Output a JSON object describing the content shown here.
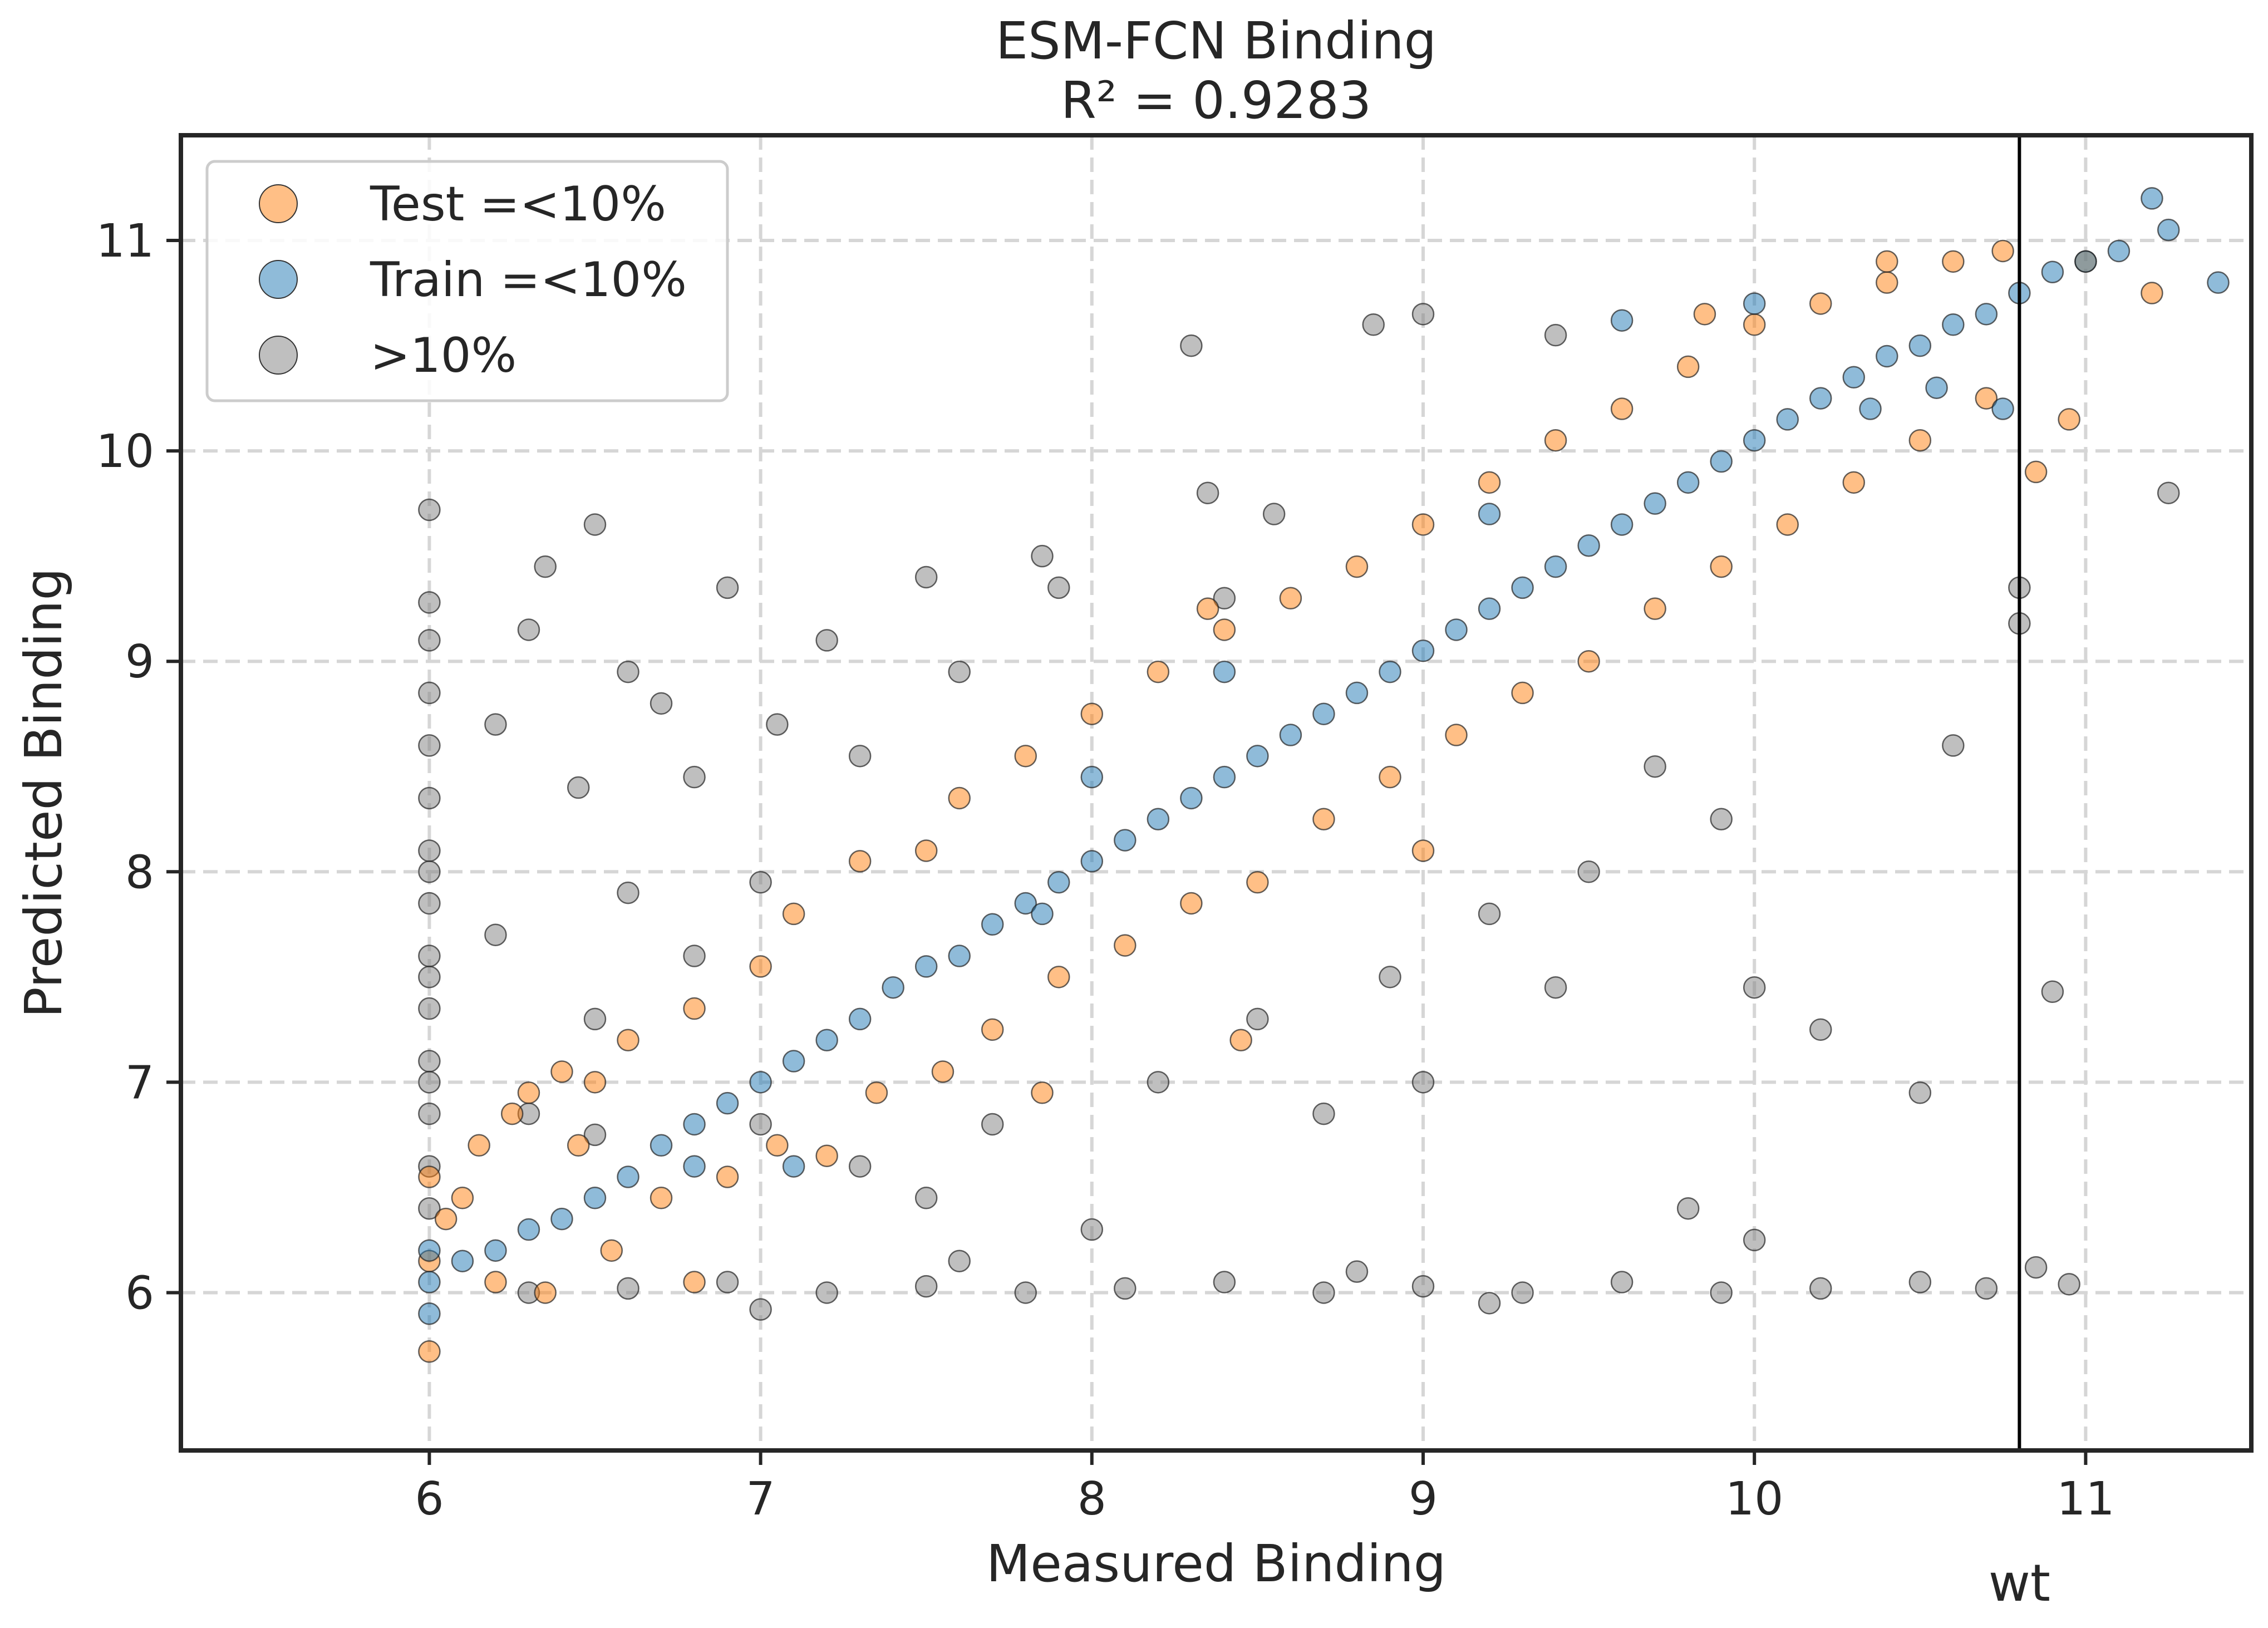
{
  "chart_data": {
    "type": "scatter",
    "title": "ESM-FCN Binding",
    "subtitle": "R² = 0.9283",
    "xlabel": "Measured Binding",
    "ylabel": "Predicted Binding",
    "xlim": [
      5.25,
      11.5
    ],
    "ylim": [
      5.25,
      11.5
    ],
    "xticks": [
      6,
      7,
      8,
      9,
      10,
      11
    ],
    "yticks": [
      6,
      7,
      8,
      9,
      10,
      11
    ],
    "grid": true,
    "legend_position": "top-left",
    "reference_line": {
      "x": 10.8,
      "label": "wt",
      "color": "#000000"
    },
    "series": [
      {
        "name": "Test =<10%",
        "color": "#ff7f0e",
        "points": [
          [
            6.0,
            6.15
          ],
          [
            6.0,
            6.55
          ],
          [
            6.0,
            5.72
          ],
          [
            6.05,
            6.35
          ],
          [
            6.1,
            6.45
          ],
          [
            6.15,
            6.7
          ],
          [
            6.2,
            6.05
          ],
          [
            6.25,
            6.85
          ],
          [
            6.3,
            6.95
          ],
          [
            6.35,
            6.0
          ],
          [
            6.4,
            7.05
          ],
          [
            6.45,
            6.7
          ],
          [
            6.5,
            7.0
          ],
          [
            6.55,
            6.2
          ],
          [
            6.6,
            7.2
          ],
          [
            6.7,
            6.45
          ],
          [
            6.8,
            7.35
          ],
          [
            6.9,
            6.55
          ],
          [
            7.0,
            7.55
          ],
          [
            7.05,
            6.7
          ],
          [
            7.1,
            7.8
          ],
          [
            7.2,
            6.65
          ],
          [
            7.3,
            8.05
          ],
          [
            7.35,
            6.95
          ],
          [
            7.5,
            8.1
          ],
          [
            7.55,
            7.05
          ],
          [
            7.6,
            8.35
          ],
          [
            7.7,
            7.25
          ],
          [
            7.8,
            8.55
          ],
          [
            7.9,
            7.5
          ],
          [
            8.0,
            8.75
          ],
          [
            8.1,
            7.65
          ],
          [
            8.2,
            8.95
          ],
          [
            8.3,
            7.85
          ],
          [
            8.4,
            9.15
          ],
          [
            8.5,
            7.95
          ],
          [
            8.6,
            9.3
          ],
          [
            8.7,
            8.25
          ],
          [
            8.8,
            9.45
          ],
          [
            8.9,
            8.45
          ],
          [
            9.0,
            9.65
          ],
          [
            9.1,
            8.65
          ],
          [
            9.2,
            9.85
          ],
          [
            9.3,
            8.85
          ],
          [
            9.4,
            10.05
          ],
          [
            9.5,
            9.0
          ],
          [
            9.6,
            10.2
          ],
          [
            9.7,
            9.25
          ],
          [
            9.8,
            10.4
          ],
          [
            9.9,
            9.45
          ],
          [
            10.0,
            10.6
          ],
          [
            10.1,
            9.65
          ],
          [
            10.2,
            10.7
          ],
          [
            10.3,
            9.85
          ],
          [
            10.4,
            10.8
          ],
          [
            10.5,
            10.05
          ],
          [
            10.6,
            10.9
          ],
          [
            10.7,
            10.25
          ],
          [
            10.75,
            10.95
          ],
          [
            10.85,
            9.9
          ],
          [
            10.95,
            10.15
          ],
          [
            11.0,
            10.9
          ],
          [
            11.2,
            10.75
          ],
          [
            9.85,
            10.65
          ],
          [
            10.4,
            10.9
          ],
          [
            9.0,
            8.1
          ],
          [
            8.45,
            7.2
          ],
          [
            7.85,
            6.95
          ],
          [
            6.8,
            6.05
          ],
          [
            8.35,
            9.25
          ]
        ]
      },
      {
        "name": "Train =<10%",
        "color": "#1f77b4",
        "points": [
          [
            6.0,
            5.9
          ],
          [
            6.0,
            6.05
          ],
          [
            6.0,
            6.2
          ],
          [
            6.1,
            6.15
          ],
          [
            6.2,
            6.2
          ],
          [
            6.3,
            6.3
          ],
          [
            6.4,
            6.35
          ],
          [
            6.5,
            6.45
          ],
          [
            6.6,
            6.55
          ],
          [
            6.7,
            6.7
          ],
          [
            6.8,
            6.8
          ],
          [
            6.9,
            6.9
          ],
          [
            7.0,
            7.0
          ],
          [
            7.1,
            7.1
          ],
          [
            7.2,
            7.2
          ],
          [
            7.3,
            7.3
          ],
          [
            7.4,
            7.45
          ],
          [
            7.5,
            7.55
          ],
          [
            7.6,
            7.6
          ],
          [
            7.7,
            7.75
          ],
          [
            7.8,
            7.85
          ],
          [
            7.9,
            7.95
          ],
          [
            8.0,
            8.05
          ],
          [
            8.1,
            8.15
          ],
          [
            8.2,
            8.25
          ],
          [
            8.3,
            8.35
          ],
          [
            8.4,
            8.45
          ],
          [
            8.5,
            8.55
          ],
          [
            8.6,
            8.65
          ],
          [
            8.7,
            8.75
          ],
          [
            8.8,
            8.85
          ],
          [
            8.9,
            8.95
          ],
          [
            9.0,
            9.05
          ],
          [
            9.1,
            9.15
          ],
          [
            9.2,
            9.25
          ],
          [
            9.3,
            9.35
          ],
          [
            9.4,
            9.45
          ],
          [
            9.5,
            9.55
          ],
          [
            9.6,
            9.65
          ],
          [
            9.7,
            9.75
          ],
          [
            9.8,
            9.85
          ],
          [
            9.9,
            9.95
          ],
          [
            10.0,
            10.05
          ],
          [
            10.1,
            10.15
          ],
          [
            10.2,
            10.25
          ],
          [
            10.3,
            10.35
          ],
          [
            10.4,
            10.45
          ],
          [
            10.5,
            10.5
          ],
          [
            10.6,
            10.6
          ],
          [
            10.7,
            10.65
          ],
          [
            10.8,
            10.75
          ],
          [
            10.9,
            10.85
          ],
          [
            11.0,
            10.9
          ],
          [
            11.1,
            10.95
          ],
          [
            11.2,
            11.2
          ],
          [
            11.25,
            11.05
          ],
          [
            11.4,
            10.8
          ],
          [
            9.6,
            10.62
          ],
          [
            10.0,
            10.7
          ],
          [
            8.4,
            8.95
          ],
          [
            7.85,
            7.8
          ],
          [
            7.1,
            6.6
          ],
          [
            6.8,
            6.6
          ],
          [
            10.35,
            10.2
          ],
          [
            10.55,
            10.3
          ],
          [
            10.75,
            10.2
          ],
          [
            9.2,
            9.7
          ],
          [
            8.0,
            8.45
          ]
        ]
      },
      {
        "name": ">10%",
        "color": "#808080",
        "points": [
          [
            6.0,
            9.72
          ],
          [
            6.0,
            9.28
          ],
          [
            6.0,
            9.1
          ],
          [
            6.0,
            8.85
          ],
          [
            6.0,
            8.6
          ],
          [
            6.0,
            8.35
          ],
          [
            6.0,
            8.1
          ],
          [
            6.0,
            7.85
          ],
          [
            6.0,
            7.6
          ],
          [
            6.0,
            7.35
          ],
          [
            6.0,
            7.1
          ],
          [
            6.0,
            6.85
          ],
          [
            6.0,
            6.6
          ],
          [
            6.0,
            6.4
          ],
          [
            6.0,
            8.0
          ],
          [
            6.0,
            7.5
          ],
          [
            6.0,
            7.0
          ],
          [
            6.35,
            9.45
          ],
          [
            6.5,
            9.65
          ],
          [
            6.3,
            9.15
          ],
          [
            6.6,
            8.95
          ],
          [
            6.2,
            8.7
          ],
          [
            6.45,
            8.4
          ],
          [
            6.7,
            8.8
          ],
          [
            6.9,
            9.35
          ],
          [
            7.05,
            8.7
          ],
          [
            6.8,
            8.45
          ],
          [
            7.2,
            9.1
          ],
          [
            7.3,
            8.55
          ],
          [
            7.5,
            9.4
          ],
          [
            7.6,
            8.95
          ],
          [
            7.85,
            9.5
          ],
          [
            7.9,
            9.35
          ],
          [
            8.3,
            10.5
          ],
          [
            8.35,
            9.8
          ],
          [
            8.55,
            9.7
          ],
          [
            8.4,
            9.3
          ],
          [
            8.85,
            10.6
          ],
          [
            9.0,
            10.65
          ],
          [
            9.4,
            10.55
          ],
          [
            6.2,
            7.7
          ],
          [
            6.5,
            7.3
          ],
          [
            6.6,
            7.9
          ],
          [
            6.8,
            7.6
          ],
          [
            7.0,
            7.95
          ],
          [
            6.3,
            6.85
          ],
          [
            6.5,
            6.75
          ],
          [
            7.0,
            6.8
          ],
          [
            7.3,
            6.6
          ],
          [
            7.5,
            6.45
          ],
          [
            7.7,
            6.8
          ],
          [
            8.0,
            6.3
          ],
          [
            8.2,
            7.0
          ],
          [
            8.5,
            7.3
          ],
          [
            8.7,
            6.85
          ],
          [
            8.9,
            7.5
          ],
          [
            9.0,
            7.0
          ],
          [
            9.2,
            7.8
          ],
          [
            9.4,
            7.45
          ],
          [
            9.5,
            8.0
          ],
          [
            9.7,
            8.5
          ],
          [
            9.9,
            8.25
          ],
          [
            10.0,
            7.45
          ],
          [
            10.2,
            7.25
          ],
          [
            10.5,
            6.95
          ],
          [
            10.6,
            8.6
          ],
          [
            10.8,
            9.35
          ],
          [
            10.8,
            9.18
          ],
          [
            10.9,
            7.43
          ],
          [
            11.25,
            9.8
          ],
          [
            9.8,
            6.4
          ],
          [
            10.0,
            6.25
          ],
          [
            6.3,
            6.0
          ],
          [
            6.6,
            6.02
          ],
          [
            6.9,
            6.05
          ],
          [
            7.2,
            6.0
          ],
          [
            7.5,
            6.03
          ],
          [
            7.8,
            6.0
          ],
          [
            8.1,
            6.02
          ],
          [
            8.4,
            6.05
          ],
          [
            8.7,
            6.0
          ],
          [
            9.0,
            6.03
          ],
          [
            9.3,
            6.0
          ],
          [
            9.6,
            6.05
          ],
          [
            9.9,
            6.0
          ],
          [
            10.2,
            6.02
          ],
          [
            10.5,
            6.05
          ],
          [
            10.7,
            6.02
          ],
          [
            10.85,
            6.12
          ],
          [
            10.95,
            6.04
          ],
          [
            7.0,
            5.92
          ],
          [
            9.2,
            5.95
          ],
          [
            7.6,
            6.15
          ],
          [
            8.8,
            6.1
          ]
        ]
      }
    ]
  }
}
